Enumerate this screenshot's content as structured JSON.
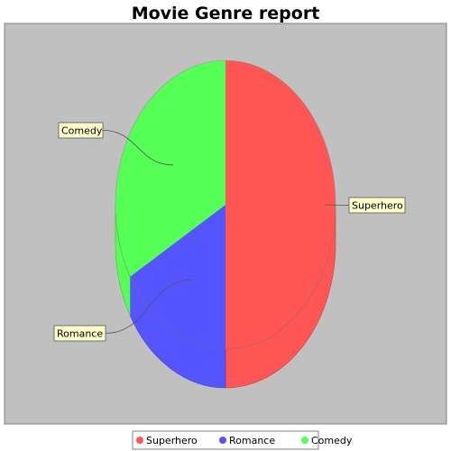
{
  "chart_data": {
    "type": "pie",
    "title": "Movie Genre report",
    "slices": [
      {
        "label": "Superhero",
        "value": 50,
        "color": "#ff5555"
      },
      {
        "label": "Romance",
        "value": 16.7,
        "color": "#5555ff"
      },
      {
        "label": "Comedy",
        "value": 33.3,
        "color": "#55ff55"
      }
    ],
    "legend": {
      "placement": "bottom",
      "items": [
        "Superhero",
        "Romance",
        "Comedy"
      ]
    },
    "style": {
      "plot_background": "#c0c0c0",
      "label_background": "#ffffcc",
      "three_d": true
    }
  }
}
